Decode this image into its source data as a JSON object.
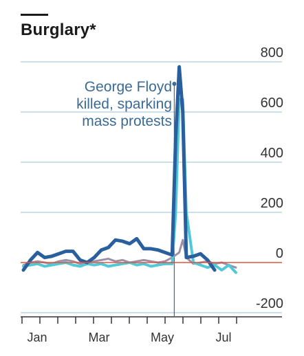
{
  "chart_data": {
    "type": "line",
    "title": "Burglary*",
    "xlabel": "",
    "ylabel": "",
    "ylim": [
      -200,
      800
    ],
    "yticks": [
      800,
      600,
      400,
      200,
      0,
      -200
    ],
    "xtick_labels": [
      "Jan",
      "Mar",
      "May",
      "Jul"
    ],
    "grid": true,
    "annotation": {
      "lines": [
        "George Floyd",
        "killed, sparking",
        "mass protests"
      ],
      "week": 21.3
    },
    "colors": {
      "dark_blue": "#2a5f9e",
      "light_blue": "#4fc8d8",
      "mauve": "#9c8fa6",
      "zero_line": "#e0533c",
      "grid": "#bcd3e3",
      "annotation": "#3a6a96"
    },
    "series": [
      {
        "color": "#9c8fa6",
        "width": 3,
        "x": [
          0,
          1,
          2,
          3,
          4,
          5,
          6,
          7,
          8,
          9,
          10,
          11,
          12,
          13,
          14,
          15,
          16,
          17,
          18,
          19,
          20,
          21,
          22,
          22.5,
          23,
          24,
          25,
          26,
          27,
          28,
          29,
          30
        ],
        "y": [
          -10,
          0,
          5,
          0,
          -5,
          5,
          10,
          5,
          -5,
          0,
          5,
          10,
          15,
          5,
          10,
          0,
          5,
          10,
          5,
          0,
          5,
          20,
          40,
          90,
          20,
          -5,
          0,
          5,
          -5,
          0,
          -10,
          -20
        ]
      },
      {
        "color": "#4fc8d8",
        "width": 4,
        "x": [
          0,
          1,
          2,
          3,
          4,
          5,
          6,
          7,
          8,
          9,
          10,
          11,
          12,
          13,
          14,
          15,
          16,
          17,
          18,
          19,
          20,
          21,
          21.5,
          22,
          22.5,
          23,
          24,
          25,
          26,
          27,
          28,
          29,
          30
        ],
        "y": [
          -15,
          -10,
          -5,
          -15,
          -10,
          -5,
          0,
          -10,
          -15,
          -5,
          -10,
          -5,
          -15,
          -10,
          -5,
          0,
          -10,
          -5,
          -15,
          -10,
          -5,
          -5,
          200,
          650,
          650,
          200,
          0,
          -10,
          -20,
          -10,
          -30,
          -10,
          -40
        ]
      },
      {
        "color": "#2a5f9e",
        "width": 5,
        "x": [
          0,
          1,
          2,
          3,
          4,
          5,
          6,
          7,
          8,
          9,
          10,
          11,
          12,
          13,
          14,
          15,
          16,
          17,
          18,
          19,
          20,
          21,
          21.5,
          22,
          22.5,
          23,
          24,
          25,
          26,
          27
        ],
        "y": [
          -30,
          10,
          40,
          20,
          25,
          35,
          45,
          45,
          10,
          0,
          20,
          50,
          60,
          90,
          85,
          75,
          95,
          55,
          55,
          50,
          40,
          30,
          500,
          780,
          600,
          20,
          25,
          35,
          10,
          -30
        ]
      }
    ]
  }
}
